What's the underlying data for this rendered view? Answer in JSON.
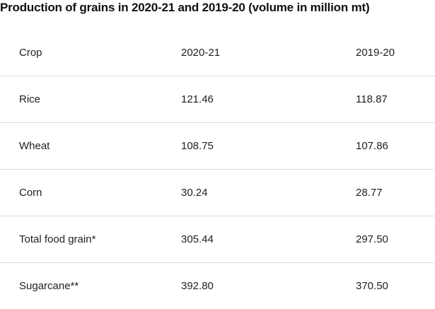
{
  "title": "Production of grains in 2020-21 and 2019-20 (volume in million mt)",
  "table": {
    "headers": [
      "Crop",
      "2020-21",
      "2019-20"
    ],
    "rows": [
      [
        "Rice",
        "121.46",
        "118.87"
      ],
      [
        "Wheat",
        "108.75",
        "107.86"
      ],
      [
        "Corn",
        "30.24",
        "28.77"
      ],
      [
        "Total food grain*",
        "305.44",
        "297.50"
      ],
      [
        "Sugarcane**",
        "392.80",
        "370.50"
      ]
    ]
  }
}
